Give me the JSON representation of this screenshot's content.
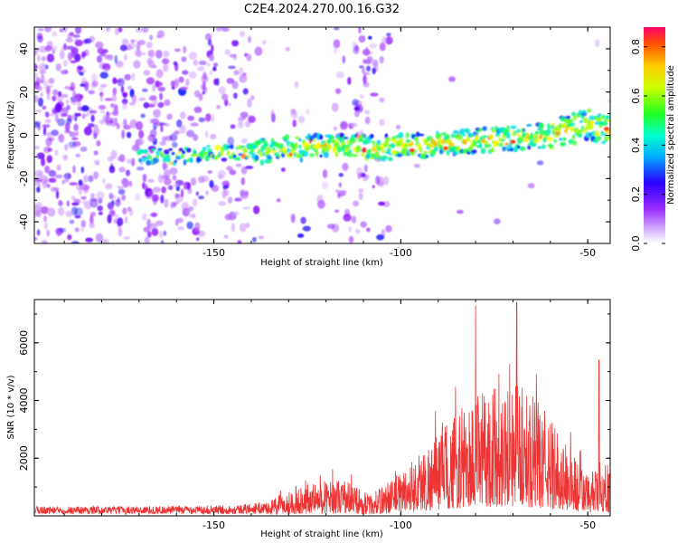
{
  "figure": {
    "title": "C2E4.2024.270.00.16.G32"
  },
  "chart_data": [
    {
      "type": "heatmap",
      "xlabel": "Height of straight line (km)",
      "ylabel": "Frequency (Hz)",
      "xlim": [
        -198,
        -44
      ],
      "ylim": [
        -50,
        50
      ],
      "x_ticks": [
        -150,
        -100,
        -50
      ],
      "y_ticks": [
        -40,
        -20,
        0,
        20,
        40
      ],
      "colorbar": {
        "label": "Normalized spectral amplitude",
        "range": [
          0,
          0.88
        ],
        "ticks": [
          0.0,
          0.2,
          0.4,
          0.6,
          0.8
        ],
        "colormap": [
          "#ffffff",
          "#cc99ff",
          "#8800ff",
          "#0000ff",
          "#00ddff",
          "#00ff66",
          "#88ff00",
          "#ffff00",
          "#ff8800",
          "#ff0044"
        ]
      },
      "ridge": {
        "description_points": [
          {
            "x": -165,
            "y": -10
          },
          {
            "x": -150,
            "y": -8
          },
          {
            "x": -135,
            "y": -7
          },
          {
            "x": -120,
            "y": -5
          },
          {
            "x": -105,
            "y": -6
          },
          {
            "x": -90,
            "y": -4
          },
          {
            "x": -75,
            "y": -2
          },
          {
            "x": -60,
            "y": 0
          },
          {
            "x": -50,
            "y": 5
          },
          {
            "x": -45,
            "y": 3
          }
        ],
        "peak_amplitude": 0.88
      },
      "grid": false
    },
    {
      "type": "line",
      "xlabel": "Height of straight line (km)",
      "ylabel": "SNR (10 * v/v)",
      "xlim": [
        -198,
        -44
      ],
      "ylim": [
        0,
        7500
      ],
      "x_ticks": [
        -150,
        -100,
        -50
      ],
      "y_ticks": [
        2000,
        4000,
        6000
      ],
      "series": [
        {
          "color": "#ee3333",
          "envelope": [
            {
              "x": -198,
              "y": 250
            },
            {
              "x": -180,
              "y": 250
            },
            {
              "x": -160,
              "y": 260
            },
            {
              "x": -145,
              "y": 280
            },
            {
              "x": -135,
              "y": 400
            },
            {
              "x": -125,
              "y": 800
            },
            {
              "x": -115,
              "y": 900
            },
            {
              "x": -108,
              "y": 500
            },
            {
              "x": -100,
              "y": 1100
            },
            {
              "x": -92,
              "y": 1800
            },
            {
              "x": -85,
              "y": 2500
            },
            {
              "x": -78,
              "y": 3000
            },
            {
              "x": -72,
              "y": 3300
            },
            {
              "x": -68,
              "y": 3200
            },
            {
              "x": -62,
              "y": 2600
            },
            {
              "x": -56,
              "y": 1800
            },
            {
              "x": -50,
              "y": 1000
            },
            {
              "x": -44,
              "y": 1300
            }
          ],
          "peaks": [
            {
              "x": -80,
              "y": 7300
            },
            {
              "x": -69,
              "y": 7400
            },
            {
              "x": -47,
              "y": 5400
            }
          ]
        }
      ],
      "grid": false
    }
  ]
}
